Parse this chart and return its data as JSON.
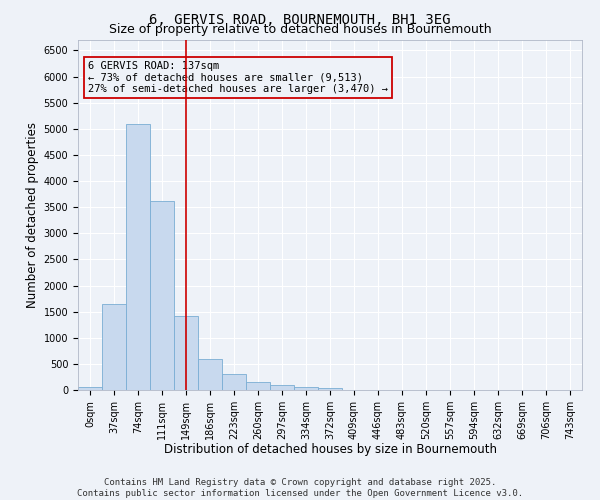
{
  "title_line1": "6, GERVIS ROAD, BOURNEMOUTH, BH1 3EG",
  "title_line2": "Size of property relative to detached houses in Bournemouth",
  "xlabel": "Distribution of detached houses by size in Bournemouth",
  "ylabel": "Number of detached properties",
  "bar_color": "#c8d9ee",
  "bar_edge_color": "#7aadd4",
  "categories": [
    "0sqm",
    "37sqm",
    "74sqm",
    "111sqm",
    "149sqm",
    "186sqm",
    "223sqm",
    "260sqm",
    "297sqm",
    "334sqm",
    "372sqm",
    "409sqm",
    "446sqm",
    "483sqm",
    "520sqm",
    "557sqm",
    "594sqm",
    "632sqm",
    "669sqm",
    "706sqm",
    "743sqm"
  ],
  "values": [
    60,
    1650,
    5100,
    3620,
    1420,
    600,
    300,
    160,
    100,
    60,
    30,
    0,
    0,
    0,
    0,
    0,
    0,
    0,
    0,
    0,
    0
  ],
  "vline_x": 4.0,
  "vline_color": "#cc0000",
  "annotation_text": "6 GERVIS ROAD: 137sqm\n← 73% of detached houses are smaller (9,513)\n27% of semi-detached houses are larger (3,470) →",
  "ylim": [
    0,
    6700
  ],
  "yticks": [
    0,
    500,
    1000,
    1500,
    2000,
    2500,
    3000,
    3500,
    4000,
    4500,
    5000,
    5500,
    6000,
    6500
  ],
  "footer_line1": "Contains HM Land Registry data © Crown copyright and database right 2025.",
  "footer_line2": "Contains public sector information licensed under the Open Government Licence v3.0.",
  "background_color": "#eef2f8",
  "grid_color": "#ffffff",
  "title_fontsize": 10,
  "subtitle_fontsize": 9,
  "axis_label_fontsize": 8.5,
  "tick_fontsize": 7,
  "footer_fontsize": 6.5,
  "annotation_fontsize": 7.5
}
